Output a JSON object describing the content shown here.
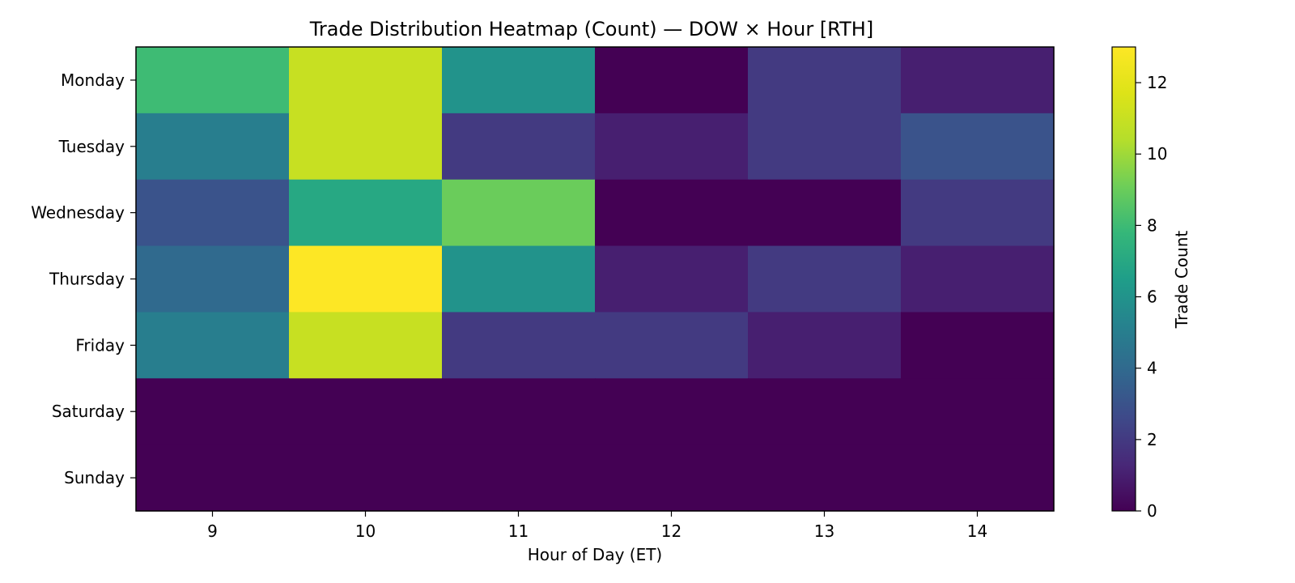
{
  "chart_data": {
    "type": "heatmap",
    "title": "Trade Distribution Heatmap (Count) — DOW × Hour [RTH]",
    "xlabel": "Hour of Day (ET)",
    "ylabel": "",
    "x": [
      "9",
      "10",
      "11",
      "12",
      "13",
      "14"
    ],
    "y": [
      "Monday",
      "Tuesday",
      "Wednesday",
      "Thursday",
      "Friday",
      "Saturday",
      "Sunday"
    ],
    "values": [
      [
        8,
        11,
        6,
        0,
        2,
        1
      ],
      [
        5,
        11,
        2,
        1,
        2,
        3
      ],
      [
        3,
        7,
        9,
        0,
        0,
        2
      ],
      [
        4,
        13,
        6,
        1,
        2,
        1
      ],
      [
        5,
        11,
        2,
        2,
        1,
        0
      ],
      [
        0,
        0,
        0,
        0,
        0,
        0
      ],
      [
        0,
        0,
        0,
        0,
        0,
        0
      ]
    ],
    "colorbar": {
      "label": "Trade Count",
      "range": [
        0,
        13
      ],
      "ticks": [
        "0",
        "2",
        "4",
        "6",
        "8",
        "10",
        "12"
      ],
      "colormap": "viridis"
    },
    "grid": false
  }
}
